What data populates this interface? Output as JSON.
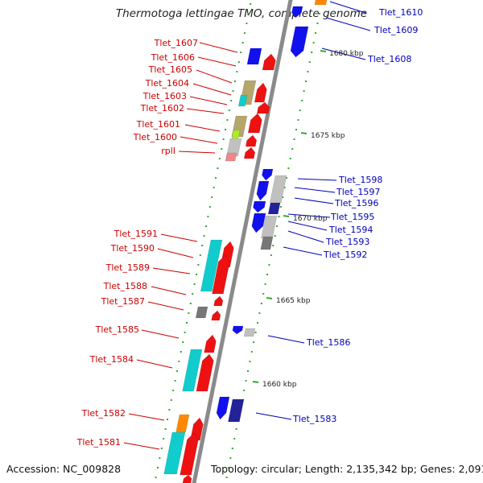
{
  "title": "Thermotoga lettingae TMO, complete genome",
  "footer": {
    "accession": "Accession: NC_009828",
    "summary": "Topology: circular; Length: 2,135,342 bp; Genes: 2,091"
  },
  "colors": {
    "background": "#ffffff",
    "backbone": "#8a8a8a",
    "forward_label": "#cc0000",
    "reverse_label": "#0000bb",
    "red": "#ee1111",
    "cyan": "#11cccc",
    "blue": "#1111ee",
    "navy": "#222299",
    "tan": "#b5a66a",
    "lime": "#aaee22",
    "pink": "#ee8888",
    "gray": "#777777",
    "lightgray": "#c0c0c0",
    "orange": "#ff8800",
    "tick_green": "#33aa33"
  },
  "scale_labels": [
    "1680 kbp",
    "1675 kbp",
    "1670 kbp",
    "1665 kbp",
    "1660 kbp"
  ],
  "genes_forward": [
    {
      "label": "Tlet_1607"
    },
    {
      "label": "Tlet_1606"
    },
    {
      "label": "Tlet_1605"
    },
    {
      "label": "Tlet_1604"
    },
    {
      "label": "Tlet_1603"
    },
    {
      "label": "Tlet_1602"
    },
    {
      "label": "Tlet_1601"
    },
    {
      "label": "Tlet_1600"
    },
    {
      "label": "rplI"
    },
    {
      "label": "Tlet_1591"
    },
    {
      "label": "Tlet_1590"
    },
    {
      "label": "Tlet_1589"
    },
    {
      "label": "Tlet_1588"
    },
    {
      "label": "Tlet_1587"
    },
    {
      "label": "Tlet_1585"
    },
    {
      "label": "Tlet_1584"
    },
    {
      "label": "Tlet_1582"
    },
    {
      "label": "Tlet_1581"
    }
  ],
  "genes_reverse": [
    {
      "label": "Tlet_1610"
    },
    {
      "label": "Tlet_1609"
    },
    {
      "label": "Tlet_1608"
    },
    {
      "label": "Tlet_1598"
    },
    {
      "label": "Tlet_1597"
    },
    {
      "label": "Tlet_1596"
    },
    {
      "label": "Tlet_1595"
    },
    {
      "label": "Tlet_1594"
    },
    {
      "label": "Tlet_1593"
    },
    {
      "label": "Tlet_1592"
    },
    {
      "label": "Tlet_1586"
    },
    {
      "label": "Tlet_1583"
    }
  ]
}
